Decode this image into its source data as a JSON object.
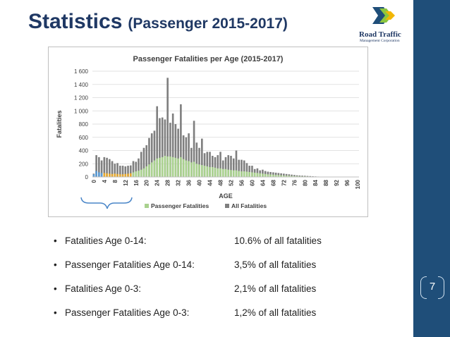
{
  "slide": {
    "title_main": "Statistics",
    "title_sub": "(Passenger 2015-2017)",
    "page_number": "7",
    "logo": {
      "line1": "Road Traffic",
      "line2": "Management Corporation"
    },
    "colors": {
      "sidebar": "#1f4e79",
      "title": "#1f3864",
      "passenger": "#a9d18e",
      "all": "#7f7f7f",
      "highlight_blue": "#5b9bd5",
      "highlight_orange": "#e6a82e"
    }
  },
  "bullets": [
    {
      "label": "Fatalities Age 0-14:",
      "value": "10.6% of all fatalities"
    },
    {
      "label": "Passenger Fatalities Age 0-14:",
      "value": "3,5% of all fatalities"
    },
    {
      "label": "Fatalities Age 0-3:",
      "value": "2,1% of all fatalities"
    },
    {
      "label": "Passenger Fatalities Age 0-3:",
      "value": "1,2% of all fatalities"
    }
  ],
  "chart_data": {
    "type": "bar",
    "title": "Passenger Fatalities per Age (2015-2017)",
    "xlabel": "AGE",
    "ylabel": "Fatalities",
    "ylim": [
      0,
      1600
    ],
    "yticks": [
      "0",
      "200",
      "400",
      "600",
      "800",
      "1 000",
      "1 200",
      "1 400",
      "1 600"
    ],
    "ytick_values": [
      0,
      200,
      400,
      600,
      800,
      1000,
      1200,
      1400,
      1600
    ],
    "xticks": [
      "0",
      "4",
      "8",
      "12",
      "16",
      "20",
      "24",
      "28",
      "32",
      "36",
      "40",
      "44",
      "48",
      "52",
      "56",
      "60",
      "64",
      "68",
      "72",
      "76",
      "80",
      "84",
      "88",
      "92",
      "96",
      "100"
    ],
    "grid": true,
    "legend": "bottom",
    "highlight": {
      "blue_ages": [
        0,
        3
      ],
      "orange_ages": [
        4,
        14
      ]
    },
    "x": [
      0,
      1,
      2,
      3,
      4,
      5,
      6,
      7,
      8,
      9,
      10,
      11,
      12,
      13,
      14,
      15,
      16,
      17,
      18,
      19,
      20,
      21,
      22,
      23,
      24,
      25,
      26,
      27,
      28,
      29,
      30,
      31,
      32,
      33,
      34,
      35,
      36,
      37,
      38,
      39,
      40,
      41,
      42,
      43,
      44,
      45,
      46,
      47,
      48,
      49,
      50,
      51,
      52,
      53,
      54,
      55,
      56,
      57,
      58,
      59,
      60,
      61,
      62,
      63,
      64,
      65,
      66,
      67,
      68,
      69,
      70,
      71,
      72,
      73,
      74,
      75,
      76,
      77,
      78,
      79,
      80,
      81,
      82,
      83,
      84,
      85,
      86,
      87,
      88,
      89,
      90,
      91,
      92,
      93,
      94,
      95,
      96,
      97,
      98,
      99,
      100
    ],
    "series": [
      {
        "name": "Passenger Fatalities",
        "values": [
          40,
          90,
          70,
          60,
          60,
          55,
          50,
          45,
          50,
          45,
          40,
          40,
          45,
          50,
          55,
          70,
          85,
          95,
          110,
          130,
          160,
          190,
          220,
          250,
          280,
          290,
          300,
          320,
          310,
          310,
          300,
          290,
          280,
          300,
          270,
          250,
          240,
          220,
          230,
          200,
          190,
          180,
          170,
          160,
          150,
          150,
          140,
          130,
          130,
          120,
          120,
          110,
          105,
          100,
          100,
          90,
          85,
          85,
          80,
          75,
          70,
          65,
          60,
          55,
          50,
          45,
          40,
          38,
          35,
          30,
          28,
          25,
          22,
          20,
          18,
          15,
          13,
          12,
          10,
          9,
          8,
          7,
          6,
          5,
          4,
          3,
          3,
          2,
          2,
          1,
          1,
          1,
          0,
          0,
          0,
          0,
          0,
          0,
          0,
          0,
          0
        ]
      },
      {
        "name": "All Fatalities",
        "values": [
          50,
          330,
          300,
          250,
          300,
          290,
          270,
          240,
          200,
          210,
          170,
          170,
          160,
          170,
          175,
          240,
          230,
          280,
          380,
          440,
          480,
          590,
          660,
          700,
          1070,
          890,
          900,
          870,
          1500,
          820,
          960,
          800,
          730,
          1100,
          630,
          600,
          660,
          440,
          850,
          520,
          440,
          580,
          360,
          380,
          380,
          320,
          300,
          330,
          380,
          250,
          300,
          330,
          320,
          280,
          400,
          260,
          260,
          250,
          210,
          170,
          170,
          120,
          130,
          100,
          110,
          90,
          80,
          75,
          70,
          65,
          60,
          55,
          50,
          45,
          40,
          35,
          30,
          25,
          22,
          20,
          18,
          15,
          13,
          10,
          8,
          6,
          5,
          4,
          3,
          2,
          2,
          1,
          1,
          0,
          0,
          0,
          0,
          0,
          0,
          0,
          0
        ]
      }
    ]
  }
}
